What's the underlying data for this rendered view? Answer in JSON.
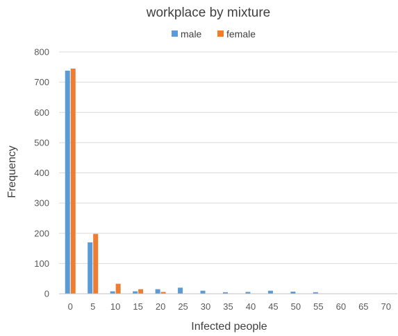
{
  "chart_data": {
    "type": "bar",
    "title": "workplace by mixture",
    "xlabel": "Infected people",
    "ylabel": "Frequency",
    "categories": [
      "0",
      "5",
      "10",
      "15",
      "20",
      "25",
      "30",
      "35",
      "40",
      "45",
      "50",
      "55",
      "60",
      "65",
      "70"
    ],
    "yticks": [
      "0",
      "100",
      "200",
      "300",
      "400",
      "500",
      "600",
      "700",
      "800"
    ],
    "ylim": [
      0,
      800
    ],
    "grid": true,
    "legend_position": "top-center",
    "series": [
      {
        "name": "male",
        "color": "#5b9bd5",
        "values": [
          738,
          170,
          8,
          8,
          15,
          20,
          10,
          5,
          6,
          10,
          7,
          5,
          1,
          0,
          0
        ]
      },
      {
        "name": "female",
        "color": "#ed7d31",
        "values": [
          745,
          198,
          33,
          15,
          6,
          0,
          0,
          0,
          0,
          0,
          0,
          0,
          0,
          0,
          0
        ]
      }
    ]
  }
}
